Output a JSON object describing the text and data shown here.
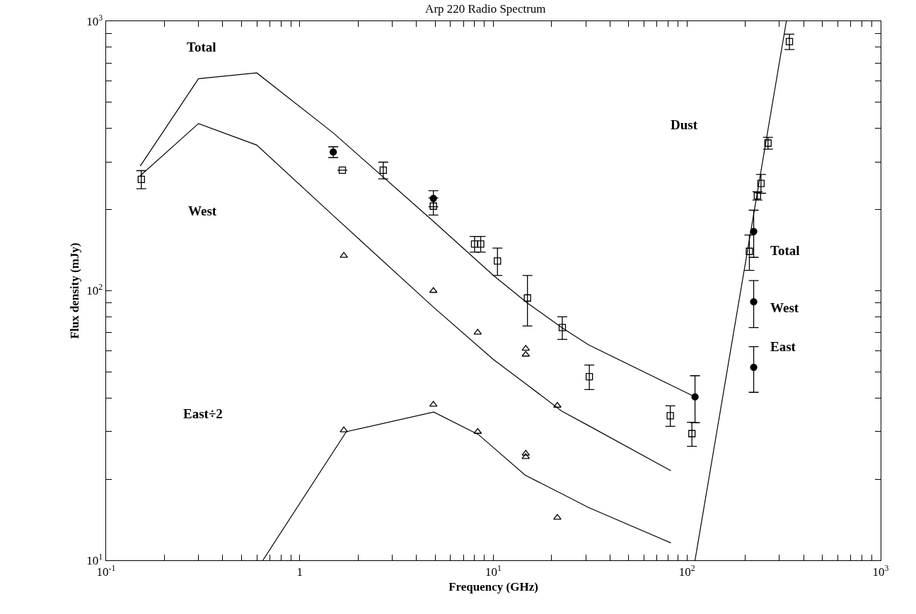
{
  "chart_data": {
    "type": "scatter",
    "title": "Arp 220 Radio Spectrum",
    "xlabel": "Frequency (GHz)",
    "ylabel": "Flux density (mJy)",
    "log": "xy",
    "xlim": [
      0.1,
      1000
    ],
    "ylim": [
      10,
      1000
    ],
    "xticks": [
      {
        "value": 0.1,
        "label": "10$^{-1}$"
      },
      {
        "value": 0.2,
        "label": null
      },
      {
        "value": 0.3,
        "label": null
      },
      {
        "value": 0.4,
        "label": null
      },
      {
        "value": 0.5,
        "label": null
      },
      {
        "value": 0.6,
        "label": null
      },
      {
        "value": 0.7,
        "label": null
      },
      {
        "value": 0.8,
        "label": null
      },
      {
        "value": 0.9,
        "label": null
      },
      1,
      {
        "value": 2,
        "label": null
      },
      {
        "value": 3,
        "label": null
      },
      {
        "value": 4,
        "label": null
      },
      {
        "value": 5,
        "label": null
      },
      {
        "value": 6,
        "label": null
      },
      {
        "value": 7,
        "label": null
      },
      {
        "value": 8,
        "label": null
      },
      {
        "value": 9,
        "label": null
      },
      {
        "value": 10,
        "label": "10$^{1}$"
      },
      {
        "value": 20,
        "label": null
      },
      {
        "value": 30,
        "label": null
      },
      {
        "value": 40,
        "label": null
      },
      {
        "value": 50,
        "label": null
      },
      {
        "value": 60,
        "label": null
      },
      {
        "value": 70,
        "label": null
      },
      {
        "value": 80,
        "label": null
      },
      {
        "value": 90,
        "label": null
      },
      {
        "value": 100,
        "label": "10$^{2}$"
      },
      {
        "value": 200,
        "label": null
      },
      {
        "value": 300,
        "label": null
      },
      {
        "value": 400,
        "label": null
      },
      {
        "value": 500,
        "label": null
      },
      {
        "value": 600,
        "label": null
      },
      {
        "value": 700,
        "label": null
      },
      {
        "value": 800,
        "label": null
      },
      {
        "value": 900,
        "label": null
      },
      {
        "value": 1000,
        "label": "10$^{3}$"
      }
    ],
    "yticks": [
      {
        "value": 10,
        "label": "10$^{1}$"
      },
      {
        "value": 20,
        "label": null
      },
      {
        "value": 30,
        "label": null
      },
      {
        "value": 40,
        "label": null
      },
      {
        "value": 50,
        "label": null
      },
      {
        "value": 60,
        "label": null
      },
      {
        "value": 70,
        "label": null
      },
      {
        "value": 80,
        "label": null
      },
      {
        "value": 90,
        "label": null
      },
      {
        "value": 100,
        "label": "10$^{2}$"
      },
      {
        "value": 200,
        "label": null
      },
      {
        "value": 300,
        "label": null
      },
      {
        "value": 400,
        "label": null
      },
      {
        "value": 500,
        "label": null
      },
      {
        "value": 600,
        "label": null
      },
      {
        "value": 700,
        "label": null
      },
      {
        "value": 800,
        "label": null
      },
      {
        "value": 900,
        "label": null
      },
      {
        "value": 1000,
        "label": "10$^{3}$"
      }
    ],
    "series": [
      {
        "type": "scatter",
        "marker": "square",
        "color": "#000000",
        "x": [
          0.152,
          1.66,
          2.7,
          4.9,
          8.0,
          8.6,
          10.5,
          15,
          22.7,
          31.3,
          82,
          106,
          210,
          231,
          241,
          262,
          338
        ],
        "values": [
          259,
          280,
          280,
          206,
          149,
          149,
          129,
          94,
          73,
          48,
          34.4,
          29.5,
          140,
          225,
          250,
          353,
          840
        ],
        "errors": [
          20,
          null,
          20,
          15,
          10,
          10,
          15,
          20,
          7,
          5,
          3,
          3,
          21,
          8,
          20,
          18,
          55
        ]
      },
      {
        "type": "scatter",
        "marker": "circle",
        "color": "#000000",
        "x": [
          1.49,
          4.9,
          110,
          221,
          221,
          221
        ],
        "values": [
          327,
          220,
          40.4,
          166,
          91,
          52
        ],
        "errors": [
          15,
          15,
          8,
          33,
          18,
          10
        ]
      },
      {
        "type": "scatter",
        "marker": "triangle",
        "color": "#000000",
        "x": [
          1.69,
          4.9,
          8.3,
          14.7,
          14.7,
          21.4
        ],
        "values": [
          135,
          100,
          70,
          61,
          58,
          37.5
        ]
      },
      {
        "type": "scatter",
        "marker": "triangle",
        "color": "#000000",
        "x": [
          1.69,
          4.9,
          8.3,
          14.7,
          14.7,
          21.4
        ],
        "values": [
          30.4,
          37.8,
          30,
          24.9,
          24.2,
          14.4
        ]
      },
      {
        "type": "line",
        "marker": "none",
        "color": "#000000",
        "x": [
          0.15,
          0.3,
          0.6,
          1.49,
          4.9,
          10,
          15,
          22.6,
          31,
          110
        ],
        "values": [
          290,
          612,
          643,
          385,
          181,
          114,
          90,
          73,
          63,
          40.4
        ]
      },
      {
        "type": "line",
        "marker": "none",
        "color": "#000000",
        "x": [
          0.15,
          0.3,
          0.6,
          1.49,
          4.9,
          10,
          15,
          22.5,
          31,
          82.6
        ],
        "values": [
          267,
          417,
          347,
          190,
          87,
          55.6,
          44.7,
          35.8,
          31.6,
          21.5
        ]
      },
      {
        "type": "line",
        "marker": "none",
        "color": "#000000",
        "x": [
          0.645,
          1.74,
          4.92,
          8.36,
          14.6,
          31,
          82.6
        ],
        "values": [
          10,
          30,
          35.5,
          29.3,
          20.7,
          15.7,
          11.6
        ]
      },
      {
        "type": "line",
        "marker": "none",
        "color": "#000000",
        "x": [
          110,
          326
        ],
        "values": [
          10,
          1000
        ]
      }
    ],
    "annotations": [
      "Total",
      "West",
      "East÷2",
      "Dust",
      "Total",
      "West",
      "East"
    ]
  }
}
